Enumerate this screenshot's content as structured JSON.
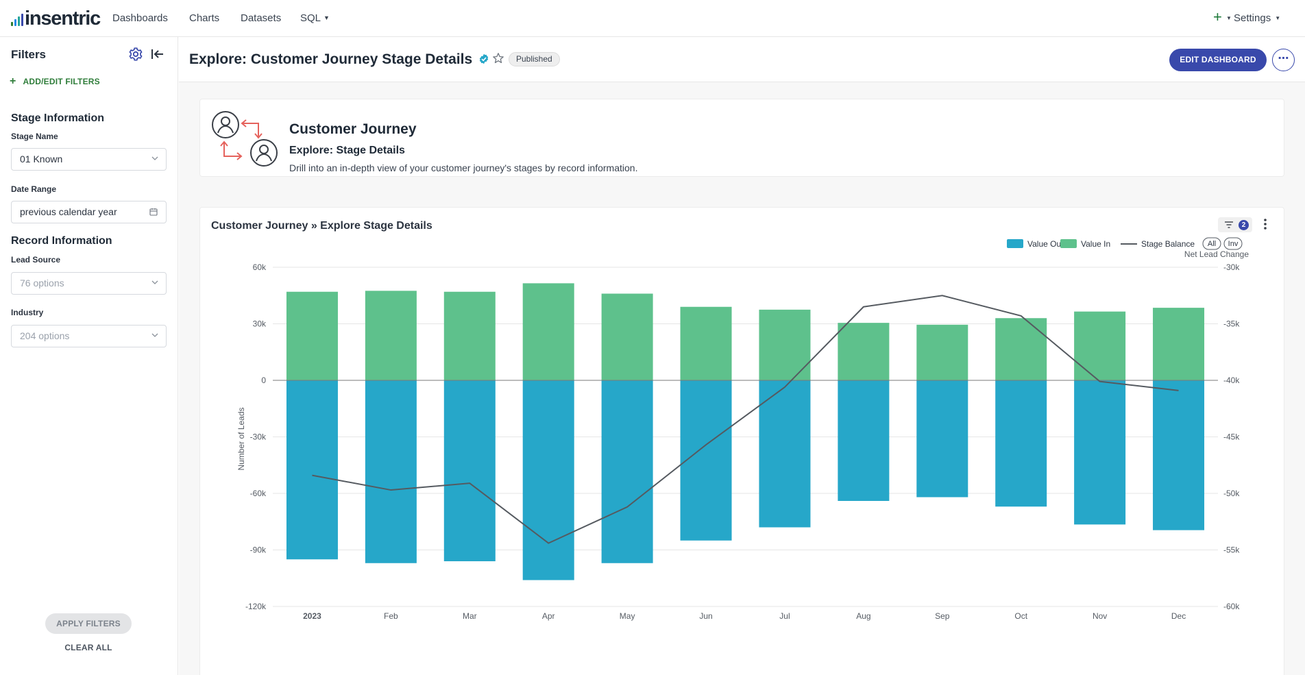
{
  "nav": {
    "logo_text": "insentric",
    "logo_bar_colors": [
      "#2e7d32",
      "#1e88e5",
      "#26a69a",
      "#3949ab"
    ],
    "items": [
      "Dashboards",
      "Charts",
      "Datasets",
      "SQL"
    ],
    "plus_label": "+",
    "settings_label": "Settings"
  },
  "sidebar": {
    "title": "Filters",
    "add_filters_label": "ADD/EDIT FILTERS",
    "stage_section": "Stage Information",
    "stage_name_label": "Stage Name",
    "stage_name_value": "01 Known",
    "date_range_label": "Date Range",
    "date_range_value": "previous calendar year",
    "record_section": "Record Information",
    "lead_source_label": "Lead Source",
    "lead_source_placeholder": "76 options",
    "industry_label": "Industry",
    "industry_placeholder": "204 options",
    "apply_label": "APPLY FILTERS",
    "clear_label": "CLEAR ALL"
  },
  "header": {
    "title": "Explore: Customer Journey Stage Details",
    "status": "Published",
    "edit_label": "EDIT DASHBOARD",
    "more_label": "⋯"
  },
  "hero": {
    "title": "Customer Journey",
    "subtitle": "Explore: Stage Details",
    "description": "Drill into an in-depth view of your customer journey's stages by record information."
  },
  "chart_card": {
    "title": "Customer Journey » Explore Stage Details",
    "filter_count": "2"
  },
  "colors": {
    "value_out": "#26a7c9",
    "value_in": "#5ec18c",
    "line": "#555a60",
    "accent": "#3949ab"
  },
  "chart_data": {
    "type": "bar",
    "categories": [
      "2023",
      "Feb",
      "Mar",
      "Apr",
      "May",
      "Jun",
      "Jul",
      "Aug",
      "Sep",
      "Oct",
      "Nov",
      "Dec"
    ],
    "series": [
      {
        "name": "Value Out",
        "type": "bar",
        "axis": "left",
        "values": [
          -95000,
          -97000,
          -96000,
          -106000,
          -97000,
          -85000,
          -78000,
          -64000,
          -62000,
          -67000,
          -76500,
          -79500
        ]
      },
      {
        "name": "Value In",
        "type": "bar",
        "axis": "left",
        "values": [
          47000,
          47500,
          47000,
          51500,
          46000,
          39000,
          37500,
          30500,
          29500,
          33000,
          36500,
          38500
        ]
      },
      {
        "name": "Stage Balance",
        "type": "line",
        "axis": "right",
        "values": [
          -48400,
          -49700,
          -49100,
          -54400,
          -51200,
          -45700,
          -40600,
          -33500,
          -32500,
          -34300,
          -40100,
          -40900
        ]
      }
    ],
    "legend": [
      "Value Out",
      "Value In",
      "Stage Balance"
    ],
    "legend_buttons": [
      "All",
      "Inv"
    ],
    "legend_position": "top-right",
    "ylabel": "Number of Leads",
    "y2label": "Net Lead Change",
    "ylim": [
      -120000,
      60000
    ],
    "y2lim": [
      -60000,
      -30000
    ],
    "yticks": [
      "60k",
      "30k",
      "0",
      "-30k",
      "-60k",
      "-90k",
      "-120k"
    ],
    "y2ticks": [
      "-30k",
      "-35k",
      "-40k",
      "-45k",
      "-50k",
      "-55k",
      "-60k"
    ],
    "grid": true
  }
}
